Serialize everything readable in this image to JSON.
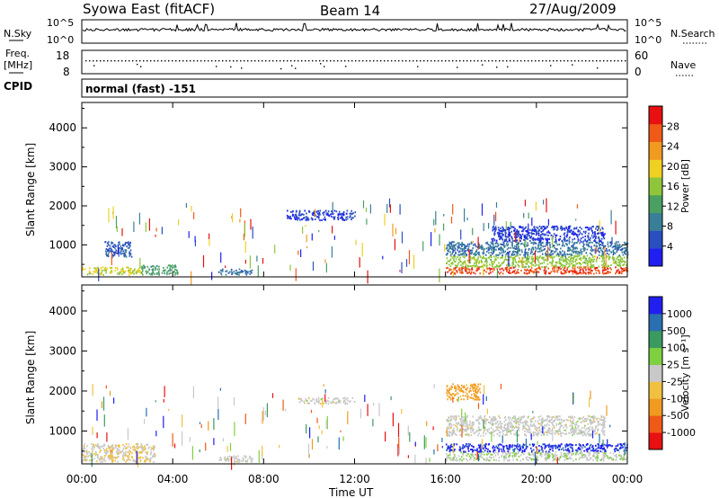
{
  "header": {
    "station": "Syowa East (fitACF)",
    "beam": "Beam 14",
    "date": "27/Aug/2009"
  },
  "top_panels": {
    "nsky_label": "N.Sky",
    "nsky_ticks": [
      "10^5",
      "10^0"
    ],
    "nsearch_label": "N.Search",
    "nsearch_ticks": [
      "10^5",
      "10^0"
    ],
    "freq_label_line1": "Freq.",
    "freq_label_line2": "[MHz]",
    "freq_ticks": [
      "18",
      "8"
    ],
    "nave_label": "Nave",
    "nave_ticks": [
      "60",
      "0"
    ],
    "cpid_label": "CPID",
    "cpid_text": "normal (fast) -151"
  },
  "chart_data": [
    {
      "type": "heatmap",
      "name": "power",
      "ylabel": "Slant Range [km]",
      "y_ticks": [
        1000,
        2000,
        3000,
        4000
      ],
      "ylim": [
        180,
        4650
      ],
      "x_ticks": [
        "00:00",
        "04:00",
        "08:00",
        "12:00",
        "16:00",
        "20:00",
        "00:00"
      ],
      "xlim_hours": [
        0,
        24
      ],
      "colorbar": {
        "label": "Power [dB]",
        "ticks": [
          "4",
          "8",
          "12",
          "16",
          "20",
          "24",
          "28"
        ],
        "colors": [
          "#1f1ff0",
          "#2a4fc0",
          "#3a7f9a",
          "#4aa060",
          "#8ec53a",
          "#f0d020",
          "#f09a20",
          "#f05a18",
          "#e81010"
        ],
        "range": [
          0,
          32
        ]
      },
      "bands": [
        {
          "t0": 0.0,
          "t1": 2.6,
          "r0": 250,
          "r1": 450,
          "value": 18
        },
        {
          "t0": 2.6,
          "t1": 4.2,
          "r0": 250,
          "r1": 500,
          "value": 12
        },
        {
          "t0": 1.0,
          "t1": 2.2,
          "r0": 700,
          "r1": 1100,
          "value": 6
        },
        {
          "t0": 6.0,
          "t1": 7.5,
          "r0": 250,
          "r1": 400,
          "value": 8
        },
        {
          "t0": 9.0,
          "t1": 12.0,
          "r0": 1650,
          "r1": 1900,
          "value": 4
        },
        {
          "t0": 16.0,
          "t1": 24.0,
          "r0": 280,
          "r1": 450,
          "value": 28
        },
        {
          "t0": 16.0,
          "t1": 24.0,
          "r0": 450,
          "r1": 750,
          "value": 16
        },
        {
          "t0": 16.0,
          "t1": 24.0,
          "r0": 750,
          "r1": 1100,
          "value": 8
        },
        {
          "t0": 18.0,
          "t1": 23.0,
          "r0": 1100,
          "r1": 1500,
          "value": 4
        }
      ]
    },
    {
      "type": "heatmap",
      "name": "velocity",
      "ylabel": "Slant Range [km]",
      "y_ticks": [
        1000,
        2000,
        3000,
        4000
      ],
      "ylim": [
        180,
        4650
      ],
      "x_ticks": [
        "00:00",
        "04:00",
        "08:00",
        "12:00",
        "16:00",
        "20:00",
        "00:00"
      ],
      "xlim_hours": [
        0,
        24
      ],
      "xlabel": "Time UT",
      "colorbar": {
        "label": "Velocity [m s⁻¹]",
        "ticks": [
          "-1000",
          "-500",
          "-100",
          "-25",
          "25",
          "100",
          "500",
          "1000"
        ],
        "colors": [
          "#e81010",
          "#f05a18",
          "#f09a20",
          "#f0c040",
          "#c8c8c8",
          "#7fd040",
          "#3a9a60",
          "#2a6fb0",
          "#1f1ff0"
        ],
        "range": [
          -1200,
          1200
        ]
      },
      "bands": [
        {
          "t0": 0.0,
          "t1": 3.2,
          "r0": 250,
          "r1": 700,
          "value": -100
        },
        {
          "t0": 6.0,
          "t1": 7.5,
          "r0": 250,
          "r1": 400,
          "value": 0
        },
        {
          "t0": 9.5,
          "t1": 12.0,
          "r0": 1700,
          "r1": 1850,
          "value": 0
        },
        {
          "t0": 16.0,
          "t1": 24.0,
          "r0": 280,
          "r1": 500,
          "value": 100
        },
        {
          "t0": 16.0,
          "t1": 24.0,
          "r0": 500,
          "r1": 700,
          "value": 1000
        },
        {
          "t0": 16.0,
          "t1": 23.0,
          "r0": 900,
          "r1": 1400,
          "value": 0
        },
        {
          "t0": 16.0,
          "t1": 17.5,
          "r0": 1800,
          "r1": 2200,
          "value": -500
        }
      ]
    }
  ]
}
